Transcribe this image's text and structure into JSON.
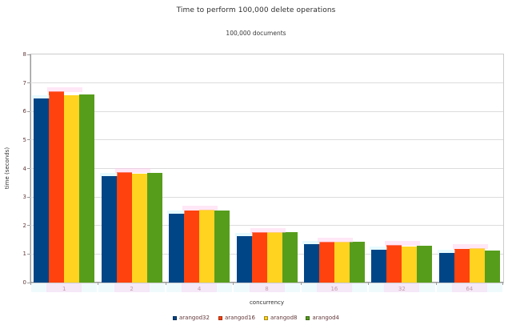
{
  "chart_data": {
    "type": "bar",
    "title": "Time to perform 100,000 delete operations",
    "subtitle": "100,000 documents",
    "xlabel": "concurrency",
    "ylabel": "time (seconds)",
    "categories": [
      "1",
      "2",
      "4",
      "8",
      "16",
      "32",
      "64"
    ],
    "series": [
      {
        "name": "arangod32",
        "color": "#004586",
        "values": [
          6.45,
          3.72,
          2.42,
          1.63,
          1.36,
          1.15,
          1.03
        ]
      },
      {
        "name": "arangod16",
        "color": "#FF420E",
        "values": [
          6.7,
          3.87,
          2.54,
          1.76,
          1.44,
          1.33,
          1.19
        ]
      },
      {
        "name": "arangod8",
        "color": "#FFD320",
        "values": [
          6.56,
          3.82,
          2.56,
          1.76,
          1.43,
          1.26,
          1.22
        ]
      },
      {
        "name": "arangod4",
        "color": "#579D1C",
        "values": [
          6.6,
          3.85,
          2.54,
          1.78,
          1.43,
          1.28,
          1.13
        ]
      }
    ],
    "ylim": [
      0,
      8
    ],
    "yticks": [
      0,
      1,
      2,
      3,
      4,
      5,
      6,
      7,
      8
    ],
    "grid": true,
    "legend_position": "bottom",
    "styles": {
      "tick_label_color": "#7a3336",
      "grid_color": "#dcdcdc",
      "axis_color": "#9a9a9a"
    }
  }
}
